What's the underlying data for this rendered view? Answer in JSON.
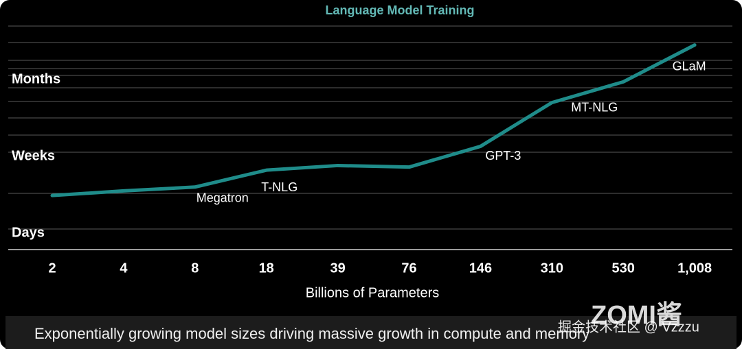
{
  "chart_data": {
    "type": "line",
    "title": "Language Model Training",
    "x_label": "Billions of Parameters",
    "categories": [
      "2",
      "4",
      "8",
      "18",
      "39",
      "76",
      "146",
      "310",
      "530",
      "1,008"
    ],
    "values": [
      0.49,
      0.55,
      0.6,
      0.82,
      0.88,
      0.86,
      1.13,
      1.7,
      1.97,
      2.45
    ],
    "point_labels": [
      null,
      null,
      "Megatron",
      "T-NLG",
      null,
      null,
      "GPT-3",
      "MT-NLG",
      null,
      "GLaM"
    ],
    "color": "#1f8c8a",
    "ylim": [
      -0.2,
      3
    ],
    "yticks": [
      {
        "value": 0,
        "label": "Days"
      },
      {
        "value": 1,
        "label": "Weeks"
      },
      {
        "value": 2,
        "label": "Months"
      }
    ]
  },
  "caption": "Exponentially growing model sizes driving massive growth in compute and memory",
  "watermark": {
    "site": "掘金技术社区 @ Vzzzu",
    "brand": "ZOMI酱"
  }
}
